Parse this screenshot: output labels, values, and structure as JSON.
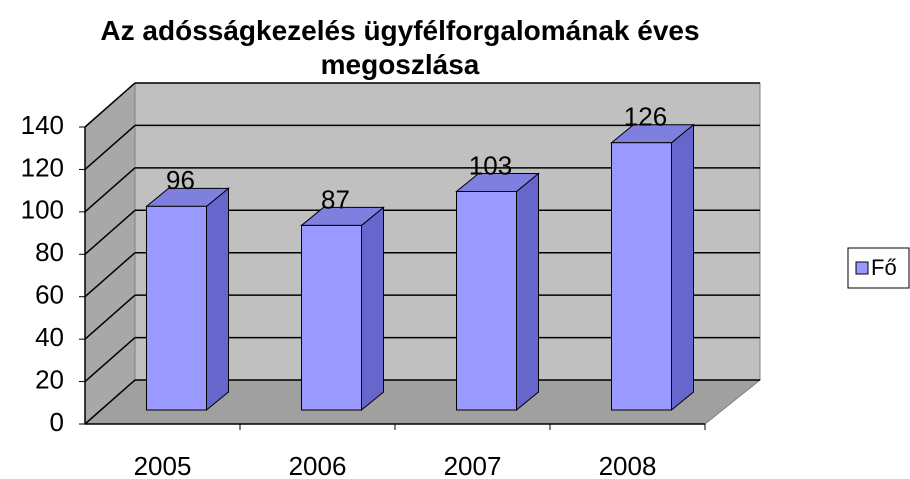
{
  "chart_data": {
    "type": "bar",
    "title": "Az adósságkezelés ügyfélforgalomának éves megoszlása",
    "categories": [
      "2005",
      "2006",
      "2007",
      "2008"
    ],
    "series": [
      {
        "name": "Fő",
        "color": "#9999ff",
        "values": [
          96,
          87,
          103,
          126
        ]
      }
    ],
    "ylim": [
      0,
      140
    ],
    "yticks": [
      0,
      20,
      40,
      60,
      80,
      100,
      120,
      140
    ],
    "grid": true,
    "legend": "right"
  }
}
